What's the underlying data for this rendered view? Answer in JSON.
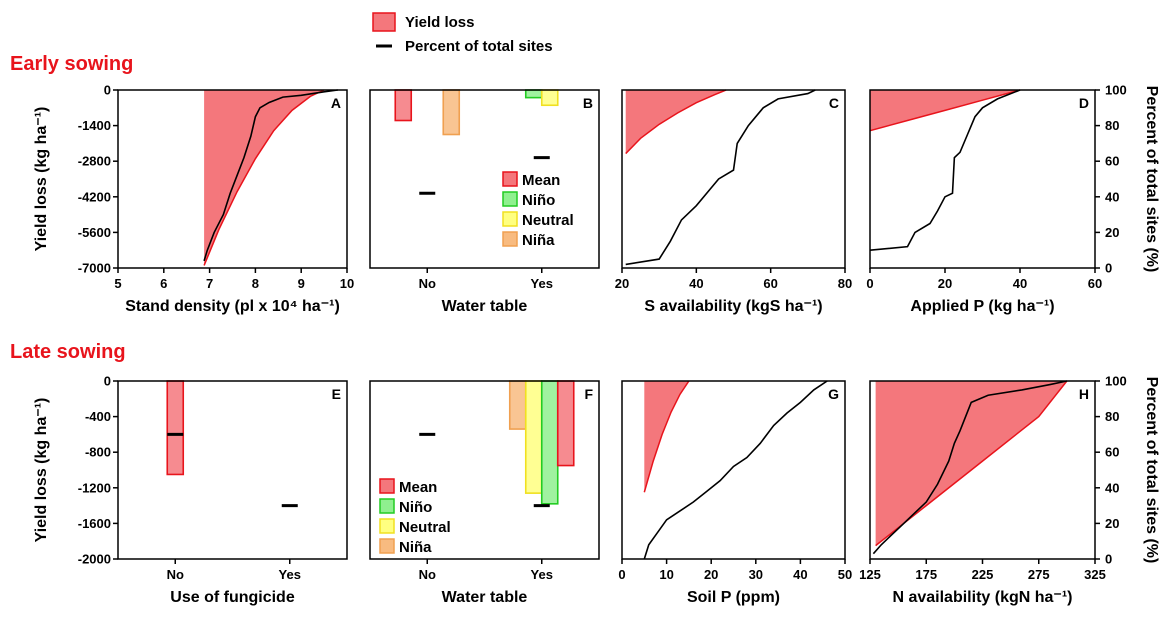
{
  "figure": {
    "row_titles": [
      "Early sowing",
      "Late sowing"
    ],
    "left_axis_label": "Yield loss (kg ha⁻¹)",
    "right_axis_label": "Percent of total sites (%)",
    "legend": {
      "yield_loss": "Yield loss",
      "percent_sites": "Percent of total sites"
    },
    "colors": {
      "fill": "#f4777c",
      "line": "#e8141c",
      "mean": "#f4777c",
      "nino": "#8ff08f",
      "neutral": "#ffff80",
      "nina": "#f8bb80",
      "mean_edge": "#e8141c",
      "nino_edge": "#22cc22",
      "neutral_edge": "#f0e020",
      "nina_edge": "#f0a050"
    }
  },
  "chart_data": [
    {
      "id": "A",
      "type": "area",
      "xlabel": "Stand density (pl x 10⁴ ha⁻¹)",
      "xlim": [
        5,
        10
      ],
      "xticks": [
        "5",
        "6",
        "7",
        "8",
        "9",
        "10"
      ],
      "ylim": [
        -7000,
        0
      ],
      "yticks": [
        "0",
        "-1400",
        "-2800",
        "-4200",
        "-5600",
        "-7000"
      ],
      "right_ticks": [],
      "loss_curve": [
        [
          6.88,
          -6900
        ],
        [
          7.2,
          -5500
        ],
        [
          7.6,
          -4000
        ],
        [
          8.0,
          -2700
        ],
        [
          8.4,
          -1600
        ],
        [
          8.8,
          -800
        ],
        [
          9.2,
          -250
        ],
        [
          9.5,
          0
        ]
      ],
      "sites_line": [
        [
          6.88,
          4
        ],
        [
          6.95,
          10
        ],
        [
          7.1,
          20
        ],
        [
          7.3,
          30
        ],
        [
          7.45,
          42
        ],
        [
          7.6,
          52
        ],
        [
          7.75,
          62
        ],
        [
          7.9,
          74
        ],
        [
          8.0,
          85
        ],
        [
          8.1,
          90
        ],
        [
          8.3,
          93
        ],
        [
          8.6,
          96
        ],
        [
          9.0,
          97
        ],
        [
          9.5,
          99
        ],
        [
          9.8,
          100
        ]
      ]
    },
    {
      "id": "B",
      "type": "bar",
      "xlabel": "Water table",
      "categories": [
        "No",
        "Yes"
      ],
      "ylim": [
        -7000,
        0
      ],
      "yticks": [],
      "right_ticks": [],
      "series": [
        {
          "name": "Mean",
          "values": [
            -1200,
            0
          ]
        },
        {
          "name": "Niño",
          "values": [
            0,
            -300
          ]
        },
        {
          "name": "Neutral",
          "values": [
            0,
            -600
          ]
        },
        {
          "name": "Niña",
          "values": [
            -1750,
            0
          ]
        }
      ],
      "sites_marks": [
        42,
        62
      ],
      "legend": [
        "Mean",
        "Niño",
        "Neutral",
        "Niña"
      ]
    },
    {
      "id": "C",
      "type": "area",
      "xlabel": "S availability (kgS ha⁻¹)",
      "xlim": [
        20,
        80
      ],
      "xticks": [
        "20",
        "40",
        "60",
        "80"
      ],
      "ylim": [
        -7000,
        0
      ],
      "yticks": [],
      "right_ticks": [],
      "loss_curve": [
        [
          21,
          -2500
        ],
        [
          25,
          -1900
        ],
        [
          30,
          -1350
        ],
        [
          35,
          -900
        ],
        [
          40,
          -500
        ],
        [
          45,
          -180
        ],
        [
          48,
          0
        ]
      ],
      "sites_line": [
        [
          21,
          2
        ],
        [
          30,
          5
        ],
        [
          33,
          15
        ],
        [
          36,
          27
        ],
        [
          40,
          35
        ],
        [
          44,
          45
        ],
        [
          46,
          50
        ],
        [
          50,
          55
        ],
        [
          51,
          70
        ],
        [
          54,
          80
        ],
        [
          56,
          85
        ],
        [
          58,
          90
        ],
        [
          62,
          95
        ],
        [
          70,
          98
        ],
        [
          72,
          100
        ]
      ]
    },
    {
      "id": "D",
      "type": "area",
      "xlabel": "Applied P (kg ha⁻¹)",
      "xlim": [
        0,
        60
      ],
      "xticks": [
        "0",
        "20",
        "40",
        "60"
      ],
      "ylim": [
        -7000,
        0
      ],
      "yticks": [],
      "right_ticks": [
        "0",
        "20",
        "40",
        "60",
        "80",
        "100"
      ],
      "loss_curve": [
        [
          0,
          -1600
        ],
        [
          10,
          -1200
        ],
        [
          20,
          -800
        ],
        [
          30,
          -400
        ],
        [
          40,
          0
        ]
      ],
      "sites_line": [
        [
          0,
          10
        ],
        [
          10,
          12
        ],
        [
          12,
          20
        ],
        [
          16,
          25
        ],
        [
          18,
          32
        ],
        [
          20,
          40
        ],
        [
          22,
          42
        ],
        [
          22.5,
          62
        ],
        [
          24,
          65
        ],
        [
          26,
          75
        ],
        [
          28,
          85
        ],
        [
          30,
          90
        ],
        [
          34,
          95
        ],
        [
          40,
          100
        ]
      ]
    },
    {
      "id": "E",
      "type": "bar",
      "xlabel": "Use of fungicide",
      "categories": [
        "No",
        "Yes"
      ],
      "ylim": [
        -2000,
        0
      ],
      "yticks": [
        "0",
        "-400",
        "-800",
        "-1200",
        "-1600",
        "-2000"
      ],
      "right_ticks": [],
      "series": [
        {
          "name": "Mean",
          "values": [
            -1050,
            0
          ]
        }
      ],
      "sites_marks": [
        70,
        30
      ]
    },
    {
      "id": "F",
      "type": "bar",
      "xlabel": "Water table",
      "categories": [
        "No",
        "Yes"
      ],
      "ylim": [
        -2000,
        0
      ],
      "yticks": [],
      "right_ticks": [],
      "series": [
        {
          "name": "Niña",
          "values": [
            0,
            -540
          ]
        },
        {
          "name": "Neutral",
          "values": [
            0,
            -1260
          ]
        },
        {
          "name": "Niño",
          "values": [
            0,
            -1380
          ]
        },
        {
          "name": "Mean",
          "values": [
            0,
            -950
          ]
        }
      ],
      "sites_marks": [
        70,
        30
      ],
      "legend": [
        "Mean",
        "Niño",
        "Neutral",
        "Niña"
      ]
    },
    {
      "id": "G",
      "type": "area",
      "xlabel": "Soil P (ppm)",
      "xlim": [
        0,
        50
      ],
      "xticks": [
        "0",
        "10",
        "20",
        "30",
        "40",
        "50"
      ],
      "ylim": [
        -2000,
        0
      ],
      "yticks": [],
      "right_ticks": [],
      "loss_curve": [
        [
          5,
          -1250
        ],
        [
          7,
          -900
        ],
        [
          9,
          -600
        ],
        [
          11,
          -350
        ],
        [
          13,
          -150
        ],
        [
          15,
          0
        ]
      ],
      "sites_line": [
        [
          5,
          0
        ],
        [
          6,
          8
        ],
        [
          8,
          15
        ],
        [
          10,
          22
        ],
        [
          13,
          27
        ],
        [
          16,
          32
        ],
        [
          19,
          38
        ],
        [
          22,
          44
        ],
        [
          25,
          52
        ],
        [
          28,
          57
        ],
        [
          31,
          65
        ],
        [
          34,
          75
        ],
        [
          37,
          82
        ],
        [
          40,
          88
        ],
        [
          43,
          95
        ],
        [
          46,
          100
        ]
      ]
    },
    {
      "id": "H",
      "type": "area",
      "xlabel": "N availability (kgN ha⁻¹)",
      "xlim": [
        125,
        325
      ],
      "xticks": [
        "125",
        "175",
        "225",
        "275",
        "325"
      ],
      "ylim": [
        -2000,
        0
      ],
      "yticks": [],
      "right_ticks": [
        "0",
        "20",
        "40",
        "60",
        "80",
        "100"
      ],
      "loss_curve": [
        [
          130,
          -1850
        ],
        [
          175,
          -1400
        ],
        [
          225,
          -900
        ],
        [
          275,
          -400
        ],
        [
          300,
          0
        ]
      ],
      "sites_line": [
        [
          128,
          3
        ],
        [
          135,
          8
        ],
        [
          145,
          14
        ],
        [
          155,
          20
        ],
        [
          165,
          26
        ],
        [
          175,
          32
        ],
        [
          185,
          42
        ],
        [
          195,
          55
        ],
        [
          200,
          65
        ],
        [
          205,
          72
        ],
        [
          210,
          80
        ],
        [
          215,
          88
        ],
        [
          230,
          92
        ],
        [
          260,
          95
        ],
        [
          285,
          98
        ],
        [
          300,
          100
        ]
      ]
    }
  ]
}
